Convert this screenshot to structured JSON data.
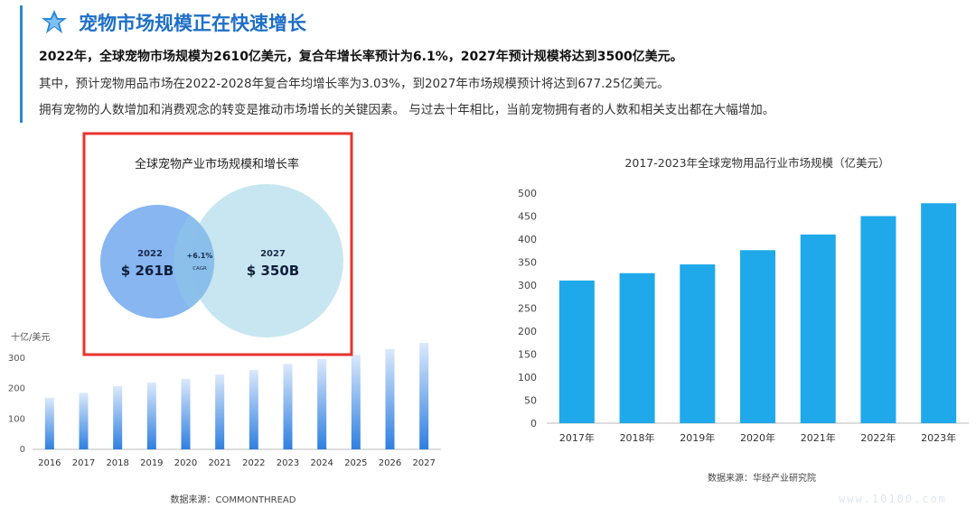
{
  "header": {
    "title": "宠物市场规模正在快速增长",
    "line1": "2022年，全球宠物市场规模为2610亿美元，复合年增长率预计为6.1%，2027年预计规模将达到3500亿美元。",
    "line2": "其中，预计宠物用品市场在2022-2028年复合年均增长率为3.03%，到2027年市场规模预计将达到677.25亿美元。",
    "line3": "拥有宠物的人数增加和消费观念的转变是推动市场增长的关键因素。 与过去十年相比，当前宠物拥有者的人数和相关支出都在大幅增加。",
    "accent": "#1e6fc8"
  },
  "venn": {
    "title": "全球宠物产业市场规模和增长率",
    "left_year": "2022",
    "left_value": "$ 261B",
    "mid_pct": "+6.1%",
    "mid_label": "CAGR",
    "right_year": "2027",
    "right_value": "$ 350B",
    "highlight_color": "#e8332d"
  },
  "left_source": "数据来源：COMMONTHREAD",
  "right_source": "数据来源：华经产业研究院",
  "watermark": "www.10100.com",
  "chart_data": [
    {
      "type": "bar",
      "title": "",
      "unit_label": "十亿/美元",
      "categories": [
        "2016",
        "2017",
        "2018",
        "2019",
        "2020",
        "2021",
        "2022",
        "2023",
        "2024",
        "2025",
        "2026",
        "2027"
      ],
      "values": [
        170,
        186,
        208,
        220,
        232,
        246,
        261,
        281,
        297,
        311,
        330,
        350
      ],
      "ylim": [
        0,
        350
      ],
      "yticks": [
        0,
        100,
        200,
        300
      ],
      "color": "#2f7fe0"
    },
    {
      "type": "bar",
      "title": "2017-2023年全球宠物用品行业市场规模（亿美元）",
      "categories": [
        "2017年",
        "2018年",
        "2019年",
        "2020年",
        "2021年",
        "2022年",
        "2023年"
      ],
      "values": [
        310,
        326,
        345,
        376,
        410,
        450,
        478
      ],
      "ylim": [
        0,
        500
      ],
      "yticks": [
        0,
        50,
        100,
        150,
        200,
        250,
        300,
        350,
        400,
        450,
        500
      ],
      "color": "#1fa9ea"
    }
  ]
}
